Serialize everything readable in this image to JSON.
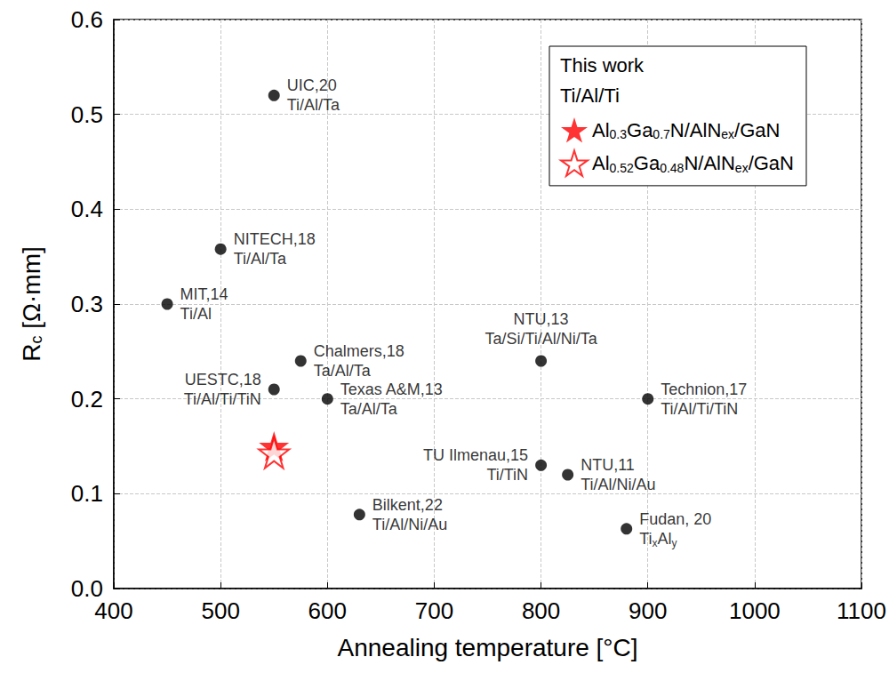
{
  "chart_data": {
    "type": "scatter",
    "x_label": "Annealing temperature [°C]",
    "y_label": "Rc [Ω·mm]",
    "xlim": [
      400,
      1100
    ],
    "xticks": [
      400,
      500,
      600,
      700,
      800,
      900,
      1000,
      1100
    ],
    "ylim": [
      0,
      0.6
    ],
    "yticks": [
      {
        "value": 0,
        "label": "0.0"
      },
      0.1,
      0.2,
      0.3,
      0.4,
      0.5,
      0.6
    ],
    "grid": true,
    "legend": "upper right",
    "legend_title": "This work",
    "legend_subtitle": "Ti/Al/Ti",
    "series": [
      {
        "color": "#000000",
        "marker": "circle",
        "x": [
          550,
          500,
          450,
          575,
          550,
          600,
          800,
          900,
          800,
          825,
          630,
          880
        ],
        "values": [
          0.52,
          0.358,
          0.3,
          0.24,
          0.21,
          0.2,
          0.24,
          0.2,
          0.13,
          0.12,
          0.078,
          0.063
        ],
        "point_labels": [
          [
            "UIC,20",
            "Ti/Al/Ta"
          ],
          [
            "NITECH,18",
            "Ti/Al/Ta"
          ],
          [
            "MIT,14",
            "Ti/Al"
          ],
          [
            "Chalmers,18",
            "Ta/Al/Ta"
          ],
          [
            "UESTC,18",
            "Ti/Al/Ti/TiN"
          ],
          [
            "Texas A&M,13",
            "Ta/Al/Ta"
          ],
          [
            "NTU,13",
            "Ta/Si/Ti/Al/Ni/Ta"
          ],
          [
            "Technion,17",
            "Ti/Al/Ti/TiN"
          ],
          [
            "TU Ilmenau,15",
            "Ti/TiN"
          ],
          [
            "NTU,11",
            "Ti/Al/Ni/Au"
          ],
          [
            "Bilkent,22",
            "Ti/Al/Ni/Au"
          ],
          [
            "Fudan, 20",
            "TixAly"
          ]
        ]
      },
      {
        "name": "Al0.3Ga0.7N/AlNex/GaN",
        "color": "#ff0000",
        "marker": "star",
        "x": [
          550
        ],
        "values": [
          0.15
        ]
      },
      {
        "name": "Al0.52Ga0.48N/AlNex/GaN",
        "color": "#ff0000",
        "marker": "star-open",
        "x": [
          550
        ],
        "values": [
          0.143
        ]
      }
    ]
  }
}
